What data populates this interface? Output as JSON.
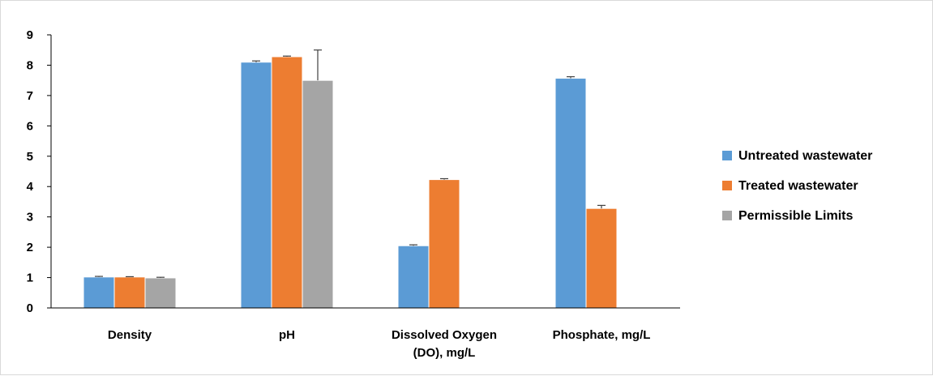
{
  "chart_data": {
    "type": "bar",
    "categories": [
      "Density",
      "pH",
      "Dissolved Oxygen (DO), mg/L",
      "Phosphate, mg/L"
    ],
    "category_lines": [
      [
        "Density"
      ],
      [
        "pH"
      ],
      [
        "Dissolved Oxygen",
        "(DO), mg/L"
      ],
      [
        "Phosphate, mg/L"
      ]
    ],
    "series": [
      {
        "name": "Untreated wastewater",
        "color": "#5b9bd5",
        "values": [
          1.02,
          8.1,
          2.05,
          7.57
        ],
        "errors": [
          0.02,
          0.04,
          0.03,
          0.05
        ]
      },
      {
        "name": "Treated wastewater",
        "color": "#ed7d31",
        "values": [
          1.02,
          8.28,
          4.23,
          3.28
        ],
        "errors": [
          0.01,
          0.02,
          0.03,
          0.1
        ]
      },
      {
        "name": "Permissible Limits",
        "color": "#a5a5a5",
        "values": [
          0.99,
          7.5,
          null,
          null
        ],
        "errors": [
          0.02,
          1.0,
          null,
          null
        ]
      }
    ],
    "yticks": [
      "0",
      "1",
      "2",
      "3",
      "4",
      "5",
      "6",
      "7",
      "8",
      "9"
    ],
    "ylim": [
      0,
      9
    ],
    "title": "",
    "xlabel": "",
    "ylabel": "",
    "grid": false,
    "legend_position": "right"
  }
}
